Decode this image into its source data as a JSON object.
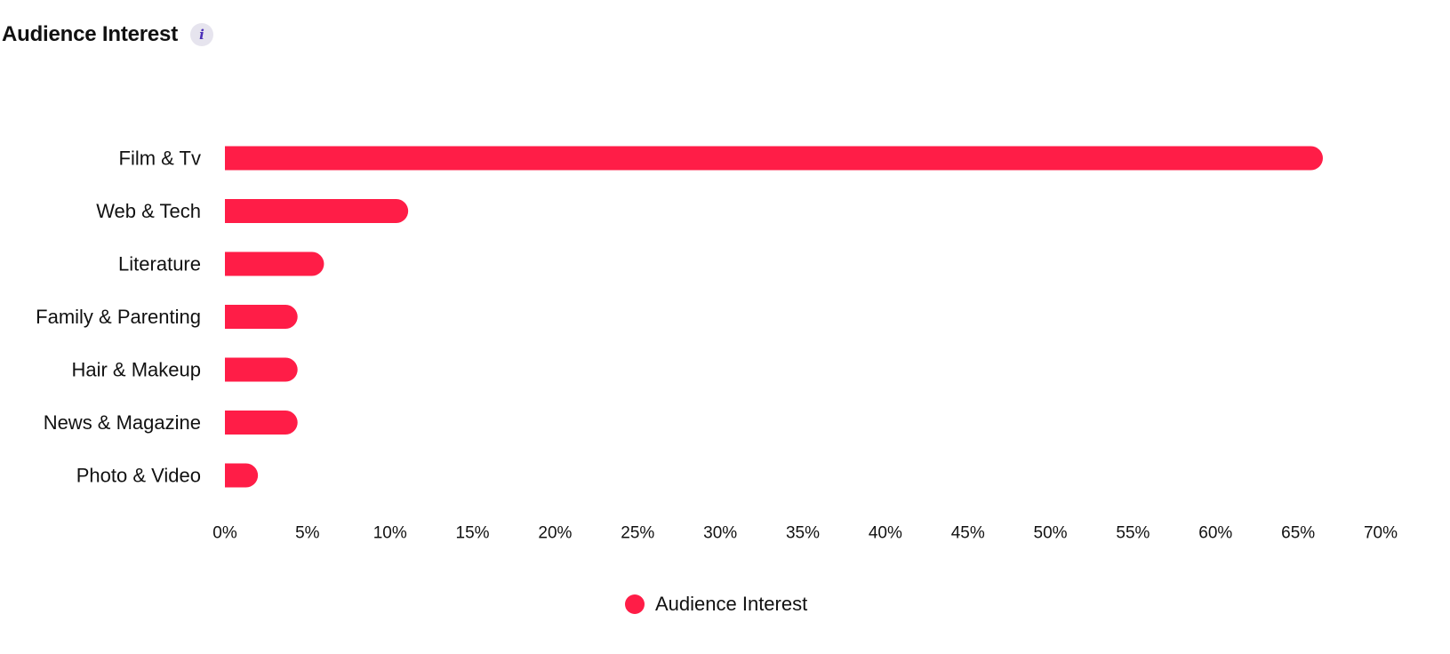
{
  "header": {
    "title": "Audience Interest",
    "info_icon_glyph": "i"
  },
  "chart_data": {
    "type": "bar",
    "orientation": "horizontal",
    "categories": [
      "Film & Tv",
      "Web & Tech",
      "Literature",
      "Family & Parenting",
      "Hair & Makeup",
      "News & Magazine",
      "Photo & Video"
    ],
    "series": [
      {
        "name": "Audience Interest",
        "color": "#ff1d47",
        "values": [
          66.5,
          11.1,
          6.0,
          4.4,
          4.4,
          4.4,
          2.0
        ]
      }
    ],
    "xticks": [
      "0%",
      "5%",
      "10%",
      "15%",
      "20%",
      "25%",
      "30%",
      "35%",
      "40%",
      "45%",
      "50%",
      "55%",
      "60%",
      "65%",
      "70%"
    ],
    "xlim": [
      0,
      70
    ],
    "grid": false,
    "legend_position": "bottom-center"
  },
  "legend": {
    "label": "Audience Interest",
    "color": "#ff1d47"
  }
}
